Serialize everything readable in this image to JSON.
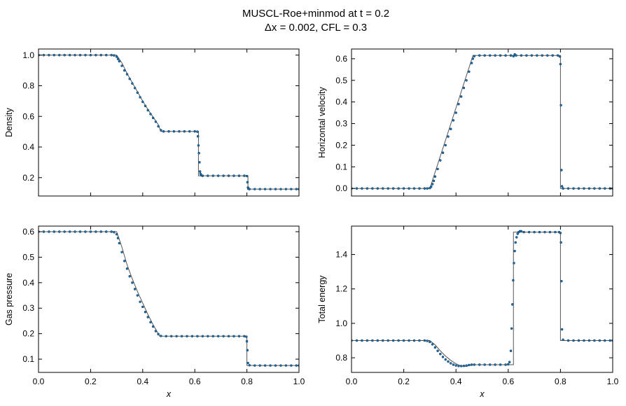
{
  "figure": {
    "title_line1": "MUSCL-Roe+minmod at t = 0.2",
    "title_line2": "Δx = 0.002, CFL = 0.3"
  },
  "colors": {
    "points": "#1f77b4",
    "points_edge": "#0d3d66",
    "reference": "#555555"
  },
  "chart_data": [
    {
      "type": "line",
      "ylabel": "Density",
      "xlabel": "",
      "xlim": [
        0,
        1
      ],
      "ylim": [
        0.08,
        1.04
      ],
      "yticks": [
        0.2,
        0.4,
        0.6,
        0.8,
        1.0
      ],
      "ytick_labels": [
        "0.2",
        "0.4",
        "0.6",
        "0.8",
        "1.0"
      ],
      "xticks": [
        0,
        0.2,
        0.4,
        0.6,
        0.8,
        1.0
      ],
      "xtick_labels": [],
      "series": [
        {
          "kind": "reference",
          "x": [
            0,
            0.3,
            0.32,
            0.34,
            0.36,
            0.38,
            0.4,
            0.42,
            0.44,
            0.46,
            0.47,
            0.614,
            0.614,
            0.804,
            0.804,
            1.0
          ],
          "y": [
            1.0,
            1.0,
            0.95,
            0.88,
            0.82,
            0.76,
            0.7,
            0.645,
            0.595,
            0.545,
            0.502,
            0.502,
            0.212,
            0.212,
            0.125,
            0.125
          ]
        },
        {
          "kind": "numerical",
          "x": [
            0,
            0.02,
            0.04,
            0.06,
            0.08,
            0.1,
            0.12,
            0.14,
            0.16,
            0.18,
            0.2,
            0.22,
            0.24,
            0.26,
            0.28,
            0.29,
            0.3,
            0.305,
            0.31,
            0.32,
            0.33,
            0.34,
            0.35,
            0.36,
            0.37,
            0.38,
            0.39,
            0.4,
            0.41,
            0.42,
            0.43,
            0.44,
            0.45,
            0.46,
            0.47,
            0.48,
            0.5,
            0.52,
            0.54,
            0.56,
            0.58,
            0.6,
            0.61,
            0.612,
            0.614,
            0.616,
            0.618,
            0.62,
            0.622,
            0.625,
            0.63,
            0.65,
            0.67,
            0.69,
            0.71,
            0.73,
            0.75,
            0.77,
            0.79,
            0.8,
            0.802,
            0.804,
            0.806,
            0.81,
            0.83,
            0.85,
            0.87,
            0.89,
            0.91,
            0.93,
            0.95,
            0.97,
            0.99,
            1.0
          ],
          "y": [
            1.0,
            1.0,
            1.0,
            1.0,
            1.0,
            1.0,
            1.0,
            1.0,
            1.0,
            1.0,
            1.0,
            1.0,
            1.0,
            1.0,
            1.0,
            0.998,
            0.99,
            0.975,
            0.96,
            0.93,
            0.9,
            0.875,
            0.845,
            0.815,
            0.785,
            0.755,
            0.725,
            0.695,
            0.668,
            0.64,
            0.615,
            0.59,
            0.565,
            0.535,
            0.51,
            0.502,
            0.502,
            0.502,
            0.502,
            0.502,
            0.502,
            0.502,
            0.5,
            0.47,
            0.41,
            0.36,
            0.3,
            0.24,
            0.225,
            0.215,
            0.212,
            0.212,
            0.212,
            0.212,
            0.212,
            0.212,
            0.212,
            0.212,
            0.212,
            0.21,
            0.17,
            0.135,
            0.127,
            0.125,
            0.125,
            0.125,
            0.125,
            0.125,
            0.125,
            0.125,
            0.125,
            0.125,
            0.125,
            0.125
          ]
        }
      ]
    },
    {
      "type": "line",
      "ylabel": "Horizontal velocity",
      "xlabel": "",
      "xlim": [
        0,
        1
      ],
      "ylim": [
        -0.035,
        0.645
      ],
      "yticks": [
        0.0,
        0.1,
        0.2,
        0.3,
        0.4,
        0.5,
        0.6
      ],
      "ytick_labels": [
        "0.0",
        "0.1",
        "0.2",
        "0.3",
        "0.4",
        "0.5",
        "0.6"
      ],
      "xticks": [
        0,
        0.2,
        0.4,
        0.6,
        0.8,
        1.0
      ],
      "xtick_labels": [],
      "series": [
        {
          "kind": "reference",
          "x": [
            0,
            0.3,
            0.465,
            0.8,
            0.8,
            1.0
          ],
          "y": [
            0.0,
            0.0,
            0.615,
            0.615,
            0.0,
            0.0
          ]
        },
        {
          "kind": "numerical",
          "x": [
            0,
            0.02,
            0.04,
            0.06,
            0.08,
            0.1,
            0.12,
            0.14,
            0.16,
            0.18,
            0.2,
            0.22,
            0.24,
            0.26,
            0.28,
            0.29,
            0.3,
            0.305,
            0.31,
            0.315,
            0.32,
            0.33,
            0.34,
            0.35,
            0.36,
            0.37,
            0.38,
            0.39,
            0.4,
            0.41,
            0.42,
            0.43,
            0.44,
            0.45,
            0.46,
            0.465,
            0.47,
            0.49,
            0.51,
            0.53,
            0.55,
            0.57,
            0.59,
            0.61,
            0.62,
            0.625,
            0.63,
            0.65,
            0.67,
            0.69,
            0.71,
            0.73,
            0.75,
            0.77,
            0.79,
            0.798,
            0.8,
            0.802,
            0.804,
            0.806,
            0.81,
            0.83,
            0.85,
            0.87,
            0.89,
            0.91,
            0.93,
            0.95,
            0.97,
            0.99,
            1.0
          ],
          "y": [
            0.0,
            0.0,
            0.0,
            0.0,
            0.0,
            0.0,
            0.0,
            0.0,
            0.0,
            0.0,
            0.0,
            0.0,
            0.0,
            0.0,
            0.0,
            0.0,
            0.002,
            0.008,
            0.02,
            0.035,
            0.055,
            0.09,
            0.13,
            0.165,
            0.2,
            0.24,
            0.275,
            0.315,
            0.35,
            0.39,
            0.425,
            0.465,
            0.5,
            0.54,
            0.58,
            0.6,
            0.612,
            0.615,
            0.615,
            0.615,
            0.615,
            0.615,
            0.615,
            0.615,
            0.612,
            0.62,
            0.615,
            0.615,
            0.615,
            0.615,
            0.615,
            0.615,
            0.615,
            0.615,
            0.615,
            0.61,
            0.575,
            0.385,
            0.085,
            0.01,
            0.0,
            0.0,
            0.0,
            0.0,
            0.0,
            0.0,
            0.0,
            0.0,
            0.0,
            0.0,
            0.0
          ]
        }
      ]
    },
    {
      "type": "line",
      "ylabel": "Gas pressure",
      "xlabel": "x",
      "xlim": [
        0,
        1
      ],
      "ylim": [
        0.048,
        0.622
      ],
      "yticks": [
        0.1,
        0.2,
        0.3,
        0.4,
        0.5,
        0.6
      ],
      "ytick_labels": [
        "0.1",
        "0.2",
        "0.3",
        "0.4",
        "0.5",
        "0.6"
      ],
      "xticks": [
        0,
        0.2,
        0.4,
        0.6,
        0.8,
        1.0
      ],
      "xtick_labels": [
        "0.0",
        "0.2",
        "0.4",
        "0.6",
        "0.8",
        "1.0"
      ],
      "series": [
        {
          "kind": "reference",
          "x": [
            0,
            0.3,
            0.32,
            0.34,
            0.36,
            0.38,
            0.4,
            0.42,
            0.44,
            0.465,
            0.8,
            0.8,
            1.0
          ],
          "y": [
            0.6,
            0.6,
            0.54,
            0.47,
            0.415,
            0.365,
            0.32,
            0.275,
            0.235,
            0.19,
            0.19,
            0.075,
            0.075
          ]
        },
        {
          "kind": "numerical",
          "x": [
            0,
            0.02,
            0.04,
            0.06,
            0.08,
            0.1,
            0.12,
            0.14,
            0.16,
            0.18,
            0.2,
            0.22,
            0.24,
            0.26,
            0.28,
            0.29,
            0.3,
            0.305,
            0.31,
            0.32,
            0.33,
            0.34,
            0.35,
            0.36,
            0.37,
            0.38,
            0.39,
            0.4,
            0.41,
            0.42,
            0.43,
            0.44,
            0.45,
            0.46,
            0.47,
            0.49,
            0.51,
            0.53,
            0.55,
            0.57,
            0.59,
            0.61,
            0.63,
            0.65,
            0.67,
            0.69,
            0.71,
            0.73,
            0.75,
            0.77,
            0.79,
            0.798,
            0.8,
            0.802,
            0.804,
            0.81,
            0.83,
            0.85,
            0.87,
            0.89,
            0.91,
            0.93,
            0.95,
            0.97,
            0.99,
            1.0
          ],
          "y": [
            0.6,
            0.6,
            0.6,
            0.6,
            0.6,
            0.6,
            0.6,
            0.6,
            0.6,
            0.6,
            0.6,
            0.6,
            0.6,
            0.6,
            0.6,
            0.598,
            0.59,
            0.575,
            0.555,
            0.52,
            0.485,
            0.455,
            0.425,
            0.4,
            0.375,
            0.35,
            0.325,
            0.305,
            0.285,
            0.265,
            0.245,
            0.228,
            0.21,
            0.198,
            0.191,
            0.19,
            0.19,
            0.19,
            0.19,
            0.19,
            0.19,
            0.19,
            0.19,
            0.19,
            0.19,
            0.19,
            0.19,
            0.19,
            0.19,
            0.19,
            0.19,
            0.188,
            0.17,
            0.135,
            0.085,
            0.076,
            0.075,
            0.075,
            0.075,
            0.075,
            0.075,
            0.075,
            0.075,
            0.075,
            0.075,
            0.075
          ]
        }
      ]
    },
    {
      "type": "line",
      "ylabel": "Total energy",
      "xlabel": "x",
      "xlim": [
        0,
        1
      ],
      "ylim": [
        0.715,
        1.565
      ],
      "yticks": [
        0.8,
        1.0,
        1.2,
        1.4
      ],
      "ytick_labels": [
        "0.8",
        "1.0",
        "1.2",
        "1.4"
      ],
      "xticks": [
        0,
        0.2,
        0.4,
        0.6,
        0.8,
        1.0
      ],
      "xtick_labels": [
        "0.0",
        "0.2",
        "0.4",
        "0.6",
        "0.8",
        "1.0"
      ],
      "series": [
        {
          "kind": "reference",
          "x": [
            0,
            0.3,
            0.32,
            0.34,
            0.36,
            0.38,
            0.4,
            0.42,
            0.44,
            0.465,
            0.62,
            0.62,
            0.8,
            0.8,
            1.0
          ],
          "y": [
            0.9,
            0.9,
            0.875,
            0.84,
            0.81,
            0.785,
            0.765,
            0.752,
            0.75,
            0.76,
            0.76,
            1.53,
            1.53,
            0.9,
            0.9
          ],
          "note": "reference"
        },
        {
          "kind": "numerical",
          "x": [
            0,
            0.02,
            0.04,
            0.06,
            0.08,
            0.1,
            0.12,
            0.14,
            0.16,
            0.18,
            0.2,
            0.22,
            0.24,
            0.26,
            0.28,
            0.29,
            0.3,
            0.31,
            0.32,
            0.33,
            0.34,
            0.35,
            0.36,
            0.37,
            0.38,
            0.39,
            0.4,
            0.41,
            0.42,
            0.43,
            0.44,
            0.45,
            0.46,
            0.47,
            0.49,
            0.51,
            0.53,
            0.55,
            0.57,
            0.59,
            0.6,
            0.605,
            0.61,
            0.613,
            0.616,
            0.619,
            0.622,
            0.625,
            0.628,
            0.632,
            0.636,
            0.64,
            0.645,
            0.65,
            0.66,
            0.68,
            0.7,
            0.72,
            0.74,
            0.76,
            0.78,
            0.795,
            0.8,
            0.802,
            0.804,
            0.806,
            0.81,
            0.83,
            0.85,
            0.87,
            0.89,
            0.91,
            0.93,
            0.95,
            0.97,
            0.99,
            1.0
          ],
          "y": [
            0.9,
            0.9,
            0.9,
            0.9,
            0.9,
            0.9,
            0.9,
            0.9,
            0.9,
            0.9,
            0.9,
            0.9,
            0.9,
            0.9,
            0.9,
            0.898,
            0.892,
            0.878,
            0.86,
            0.84,
            0.822,
            0.805,
            0.79,
            0.778,
            0.768,
            0.76,
            0.755,
            0.752,
            0.752,
            0.753,
            0.755,
            0.758,
            0.76,
            0.76,
            0.76,
            0.76,
            0.76,
            0.76,
            0.76,
            0.76,
            0.762,
            0.775,
            0.84,
            0.97,
            1.11,
            1.25,
            1.35,
            1.42,
            1.47,
            1.5,
            1.52,
            1.53,
            1.535,
            1.535,
            1.53,
            1.53,
            1.53,
            1.53,
            1.53,
            1.53,
            1.53,
            1.53,
            1.525,
            1.47,
            1.245,
            0.965,
            0.905,
            0.9,
            0.9,
            0.9,
            0.9,
            0.9,
            0.9,
            0.9,
            0.9,
            0.9,
            0.9
          ]
        }
      ]
    }
  ]
}
